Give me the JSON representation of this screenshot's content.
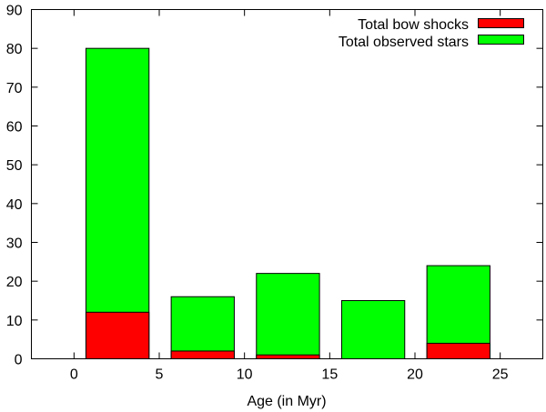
{
  "chart_data": {
    "type": "bar",
    "stacked": true,
    "title": "",
    "xlabel": "Age (in Myr)",
    "ylabel": "",
    "xlim": [
      -2.5,
      27.5
    ],
    "ylim": [
      0,
      90
    ],
    "xticks": [
      0,
      5,
      10,
      15,
      20,
      25
    ],
    "yticks": [
      0,
      10,
      20,
      30,
      40,
      50,
      60,
      70,
      80,
      90
    ],
    "grid": false,
    "legend_position": "top-right",
    "bins": [
      [
        0.7,
        4.4
      ],
      [
        5.7,
        9.4
      ],
      [
        10.7,
        14.4
      ],
      [
        15.7,
        19.4
      ],
      [
        20.7,
        24.4
      ]
    ],
    "series": [
      {
        "name": "Total bow shocks",
        "color": "#ff0000",
        "values": [
          12,
          2,
          1,
          0,
          4
        ]
      },
      {
        "name": "Total observed stars",
        "color": "#00ff00",
        "values": [
          80,
          16,
          22,
          15,
          24
        ]
      }
    ]
  }
}
